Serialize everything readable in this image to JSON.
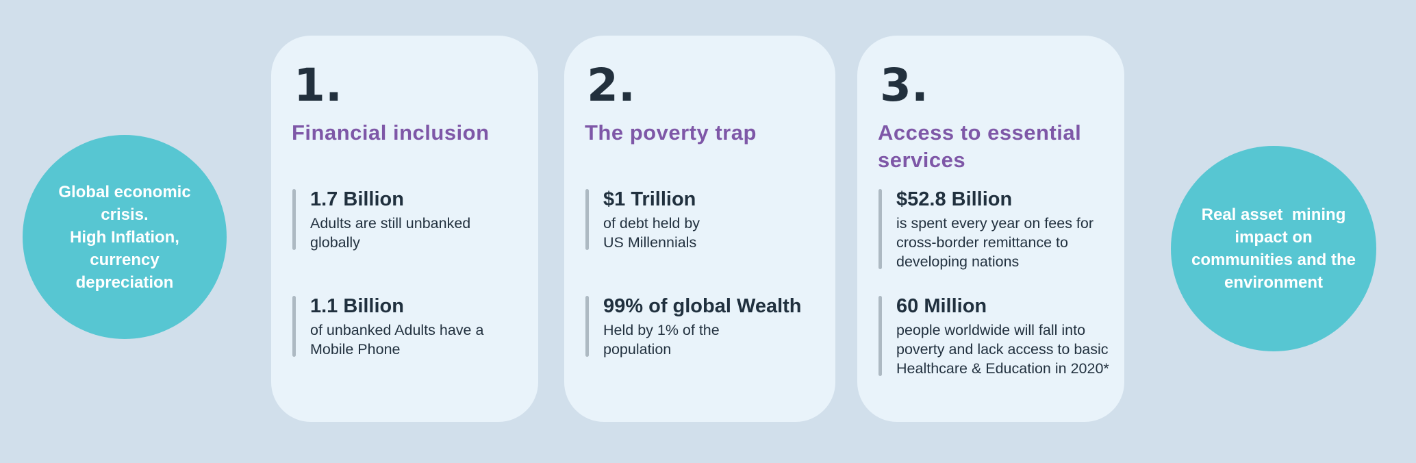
{
  "colors": {
    "background": "#d1dfeb",
    "card_background": "#e9f3fa",
    "circle_teal": "#57c6d2",
    "heading_purple": "#7e57a7",
    "dark_text": "#20303e",
    "stat_line_gray": "#adb9c2",
    "circle_text_white": "#ffffff"
  },
  "left_circle": {
    "text": "Global economic\ncrisis.\nHigh Inflation,\ncurrency\ndepreciation"
  },
  "right_circle": {
    "text": "Real asset  mining\nimpact on\ncommunities and the\nenvironment"
  },
  "cards": [
    {
      "number": "1.",
      "title": "Financial inclusion",
      "stats": [
        {
          "value": "1.7 Billion",
          "description": "Adults are still unbanked\nglobally"
        },
        {
          "value": "1.1 Billion",
          "description": "of unbanked Adults have a\nMobile Phone"
        }
      ]
    },
    {
      "number": "2.",
      "title": "The poverty trap",
      "stats": [
        {
          "value": "$1 Trillion",
          "description": "of debt held by\nUS Millennials"
        },
        {
          "value": "99% of global Wealth",
          "description": "Held by 1% of the\npopulation"
        }
      ]
    },
    {
      "number": "3.",
      "title": "Access to essential\nservices",
      "stats": [
        {
          "value": "$52.8 Billion",
          "description": "is spent every year on fees for\ncross-border remittance to\ndeveloping nations"
        },
        {
          "value": "60 Million",
          "description": "people worldwide will fall into\npoverty and lack access to basic\nHealthcare & Education in 2020*"
        }
      ]
    }
  ]
}
